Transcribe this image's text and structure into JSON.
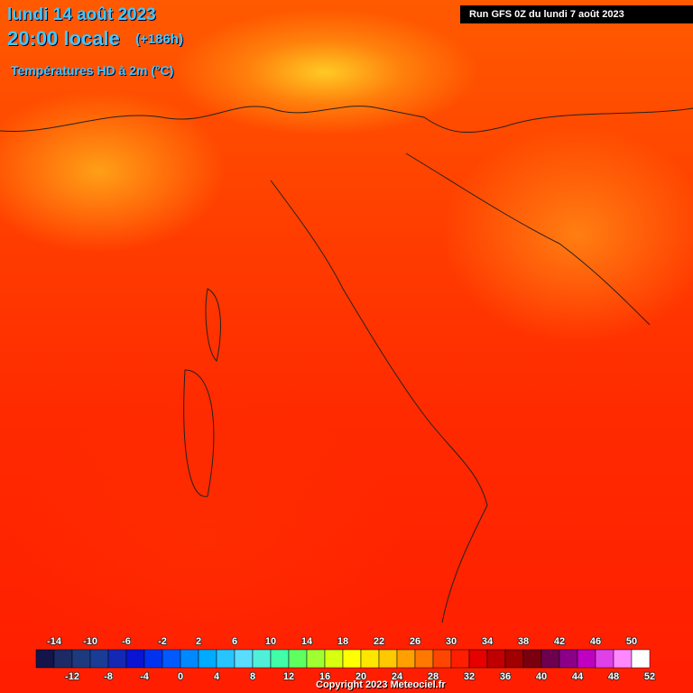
{
  "header": {
    "date": "lundi 14 août 2023",
    "time": "20:00 locale",
    "lead": "(+186h)",
    "variable": "Températures HD à 2m (°C)",
    "run": "Run GFS 0Z du lundi 7 août 2023"
  },
  "footer": {
    "copyright": "Copyright 2023 Meteociel.fr"
  },
  "legend": {
    "labels_top": [
      -14,
      -10,
      -6,
      -2,
      2,
      6,
      10,
      14,
      18,
      22,
      26,
      30,
      34,
      38,
      42,
      46,
      50
    ],
    "labels_bottom": [
      -12,
      -8,
      -4,
      0,
      4,
      8,
      12,
      16,
      20,
      24,
      28,
      32,
      36,
      40,
      44,
      48,
      52
    ],
    "colors": [
      "#14144a",
      "#1c2a66",
      "#1e3a7e",
      "#1a3c96",
      "#1428b4",
      "#0a14d2",
      "#0032f0",
      "#005aff",
      "#0088ff",
      "#00aaff",
      "#28c4ff",
      "#5adcff",
      "#50f0d8",
      "#40ffa8",
      "#60ff60",
      "#a0ff30",
      "#d8ff10",
      "#ffff00",
      "#ffe600",
      "#ffc800",
      "#ffa000",
      "#ff7800",
      "#ff4600",
      "#ff1e00",
      "#e60000",
      "#c00000",
      "#a00000",
      "#7a0010",
      "#6e0050",
      "#8c0088",
      "#c000c0",
      "#e040e8",
      "#ff88ff",
      "#ffffff"
    ]
  }
}
